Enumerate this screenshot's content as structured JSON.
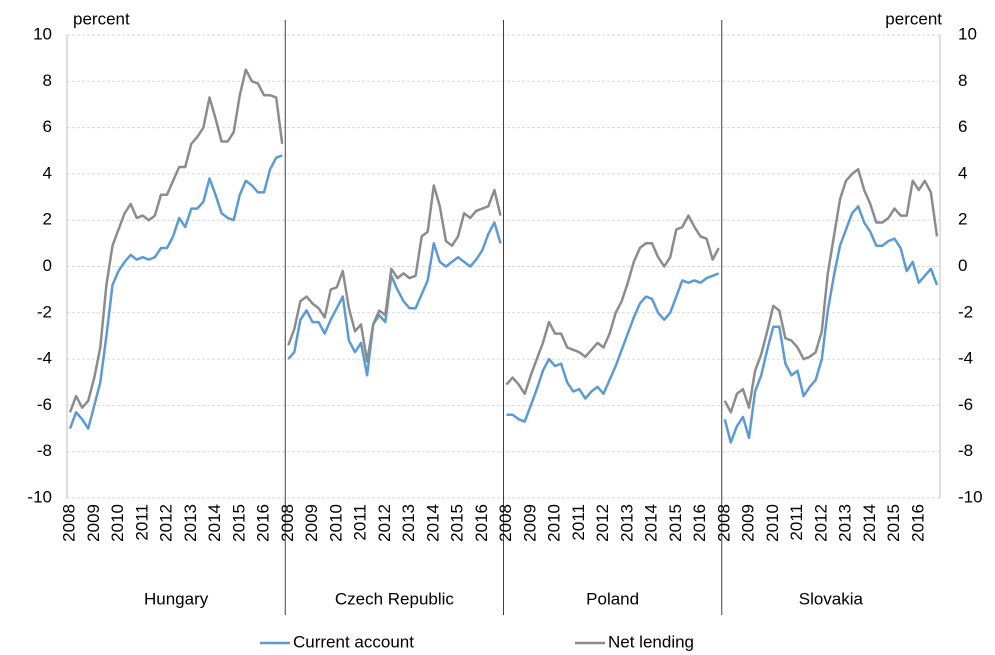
{
  "chart_data": {
    "type": "line",
    "ylabel": "percent",
    "y2label": "percent",
    "ylim": [
      -10,
      10
    ],
    "yticks": [
      -10,
      -8,
      -6,
      -4,
      -2,
      0,
      2,
      4,
      6,
      8,
      10
    ],
    "y2lim": [
      -10,
      10
    ],
    "y2ticks": [
      -10,
      -8,
      -6,
      -4,
      -2,
      0,
      2,
      4,
      6,
      8,
      10
    ],
    "grid": true,
    "legend": "bottom",
    "groups": [
      "Hungary",
      "Czech Republic",
      "Poland",
      "Slovakia"
    ],
    "categories": [
      "2008",
      null,
      null,
      null,
      "2009",
      null,
      null,
      null,
      "2010",
      null,
      null,
      null,
      "2011",
      null,
      null,
      null,
      "2012",
      null,
      null,
      null,
      "2013",
      null,
      null,
      null,
      "2014",
      null,
      null,
      null,
      "2015",
      null,
      null,
      null,
      "2016",
      null,
      null,
      null
    ],
    "series": [
      {
        "name": "Current account",
        "color": "#5b9bd5",
        "values": [
          [
            -7.0,
            -6.3,
            -6.6,
            -7.0,
            -6.0,
            -5.0,
            -3.0,
            -0.8,
            -0.2,
            0.2,
            0.5,
            0.3,
            0.4,
            0.3,
            0.4,
            0.8,
            0.8,
            1.3,
            2.1,
            1.7,
            2.5,
            2.5,
            2.8,
            3.8,
            3.1,
            2.3,
            2.1,
            2.0,
            3.1,
            3.7,
            3.5,
            3.2,
            3.2,
            4.2,
            4.7,
            4.8
          ],
          [
            -4.0,
            -3.7,
            -2.3,
            -1.9,
            -2.4,
            -2.4,
            -2.9,
            -2.3,
            -1.8,
            -1.3,
            -3.2,
            -3.7,
            -3.3,
            -4.7,
            -2.5,
            -2.1,
            -2.4,
            -0.4,
            -1.0,
            -1.5,
            -1.8,
            -1.8,
            -1.2,
            -0.6,
            1.0,
            0.2,
            0.0,
            0.2,
            0.4,
            0.2,
            0.0,
            0.3,
            0.7,
            1.4,
            1.9,
            1.0
          ],
          [
            -6.4,
            -6.4,
            -6.6,
            -6.7,
            -6.0,
            -5.3,
            -4.5,
            -4.0,
            -4.3,
            -4.2,
            -5.0,
            -5.4,
            -5.3,
            -5.7,
            -5.4,
            -5.2,
            -5.5,
            -4.9,
            -4.3,
            -3.6,
            -2.9,
            -2.2,
            -1.6,
            -1.3,
            -1.4,
            -2.0,
            -2.3,
            -2.0,
            -1.3,
            -0.6,
            -0.7,
            -0.6,
            -0.7,
            -0.5,
            -0.4,
            -0.3
          ],
          [
            -6.6,
            -7.6,
            -6.9,
            -6.5,
            -7.4,
            -5.4,
            -4.7,
            -3.6,
            -2.6,
            -2.6,
            -4.2,
            -4.7,
            -4.5,
            -5.6,
            -5.2,
            -4.9,
            -4.0,
            -1.9,
            -0.4,
            0.9,
            1.6,
            2.3,
            2.6,
            1.9,
            1.5,
            0.9,
            0.9,
            1.1,
            1.2,
            0.8,
            -0.2,
            0.2,
            -0.7,
            -0.4,
            -0.1,
            -0.8
          ]
        ]
      },
      {
        "name": "Net lending",
        "color": "#8c8c8c",
        "values": [
          [
            -6.3,
            -5.6,
            -6.1,
            -5.8,
            -4.8,
            -3.5,
            -0.8,
            0.9,
            1.6,
            2.3,
            2.7,
            2.1,
            2.2,
            2.0,
            2.2,
            3.1,
            3.1,
            3.7,
            4.3,
            4.3,
            5.3,
            5.6,
            6.0,
            7.3,
            6.4,
            5.4,
            5.4,
            5.8,
            7.4,
            8.5,
            8.0,
            7.9,
            7.4,
            7.4,
            7.3,
            5.3
          ],
          [
            -3.4,
            -2.7,
            -1.5,
            -1.3,
            -1.6,
            -1.8,
            -2.2,
            -1.0,
            -0.9,
            -0.2,
            -1.8,
            -2.8,
            -2.5,
            -4.1,
            -2.5,
            -1.9,
            -2.1,
            -0.1,
            -0.5,
            -0.3,
            -0.5,
            -0.4,
            1.3,
            1.5,
            3.5,
            2.6,
            1.1,
            0.9,
            1.3,
            2.3,
            2.1,
            2.4,
            2.5,
            2.6,
            3.3,
            2.2
          ],
          [
            -5.1,
            -4.8,
            -5.1,
            -5.5,
            -4.7,
            -4.0,
            -3.3,
            -2.4,
            -2.9,
            -2.9,
            -3.5,
            -3.6,
            -3.7,
            -3.9,
            -3.6,
            -3.3,
            -3.5,
            -2.9,
            -2.0,
            -1.5,
            -0.7,
            0.2,
            0.8,
            1.0,
            1.0,
            0.4,
            0.0,
            0.4,
            1.6,
            1.7,
            2.2,
            1.7,
            1.3,
            1.2,
            0.3,
            0.8
          ],
          [
            -5.8,
            -6.3,
            -5.5,
            -5.3,
            -6.1,
            -4.5,
            -3.8,
            -2.8,
            -1.7,
            -1.9,
            -3.1,
            -3.2,
            -3.5,
            -4.0,
            -3.9,
            -3.7,
            -2.8,
            -0.3,
            1.3,
            2.9,
            3.7,
            4.0,
            4.2,
            3.3,
            2.7,
            1.9,
            1.9,
            2.1,
            2.5,
            2.2,
            2.2,
            3.7,
            3.3,
            3.7,
            3.2,
            1.3
          ]
        ]
      }
    ]
  }
}
